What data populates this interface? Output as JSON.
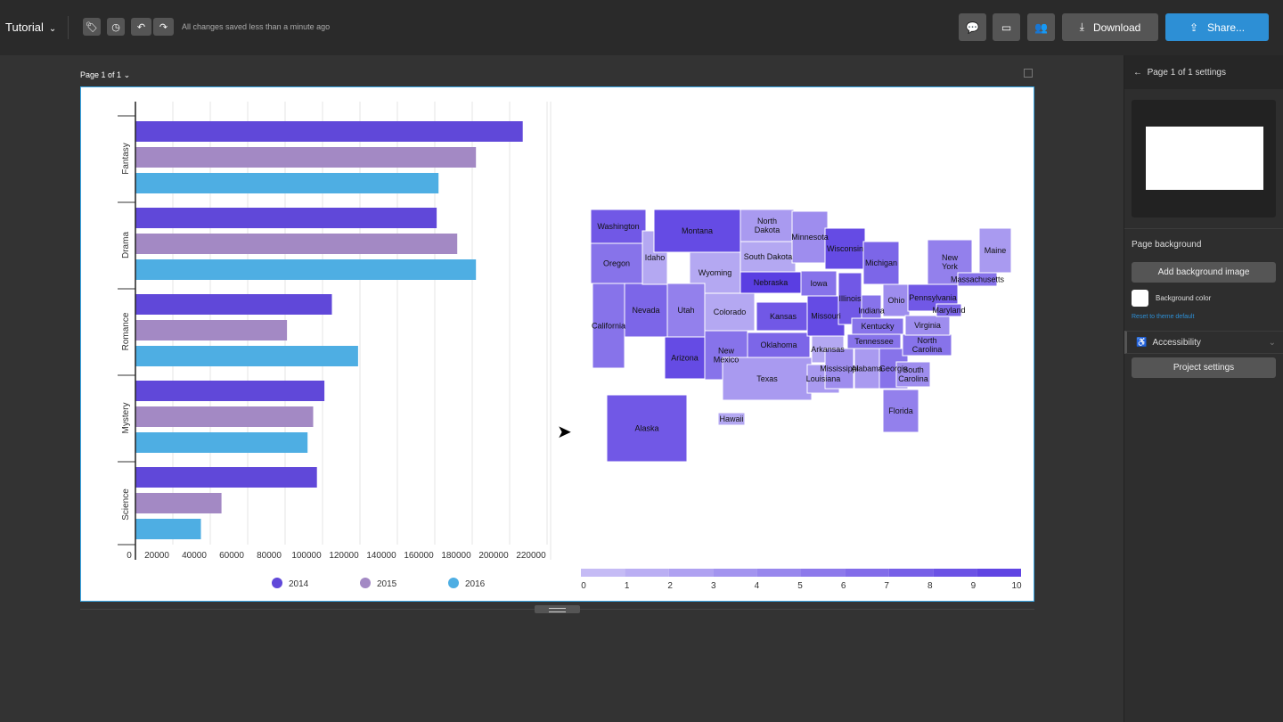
{
  "header": {
    "title": "Tutorial",
    "saved_status": "All changes saved less than a minute ago",
    "download": "Download",
    "share": "Share...",
    "icons": [
      "tag-icon",
      "history-icon",
      "undo-icon",
      "redo-icon",
      "comment-icon",
      "present-icon",
      "users-icon",
      "download-icon",
      "share-icon"
    ]
  },
  "canvas": {
    "page_label": "Page 1 of 1"
  },
  "panel": {
    "title": "Page 1 of 1 settings",
    "page_background": "Page background",
    "add_background_image": "Add background image",
    "background_color": "Background color",
    "reset": "Reset to theme default",
    "accessibility": "Accessibility",
    "project_settings": "Project settings"
  },
  "chart_data": [
    {
      "type": "bar",
      "orientation": "horizontal",
      "categories": [
        "Fantasy",
        "Drama",
        "Romance",
        "Mystery",
        "Science"
      ],
      "series": [
        {
          "name": "2014",
          "color": "#6048d9",
          "values": [
            207000,
            161000,
            105000,
            101000,
            97000
          ]
        },
        {
          "name": "2015",
          "color": "#a389c4",
          "values": [
            182000,
            172000,
            81000,
            95000,
            46000
          ]
        },
        {
          "name": "2016",
          "color": "#4eaee3",
          "values": [
            162000,
            182000,
            119000,
            92000,
            35000
          ]
        }
      ],
      "xticks": [
        "0",
        "20000",
        "40000",
        "60000",
        "80000",
        "100000",
        "120000",
        "140000",
        "160000",
        "180000",
        "200000",
        "220000"
      ],
      "xlim": [
        0,
        220000
      ],
      "legend": "bottom"
    },
    {
      "type": "choropleth",
      "scale": [
        0,
        10
      ],
      "scale_ticks": [
        "0",
        "1",
        "2",
        "3",
        "4",
        "5",
        "6",
        "7",
        "8",
        "9",
        "10"
      ],
      "color_low": "#cbc2f6",
      "color_high": "#5a3ee2",
      "states": [
        {
          "name": "Washington",
          "value": 8
        },
        {
          "name": "Oregon",
          "value": 6
        },
        {
          "name": "California",
          "value": 6
        },
        {
          "name": "Nevada",
          "value": 7
        },
        {
          "name": "Idaho",
          "value": 2
        },
        {
          "name": "Montana",
          "value": 9
        },
        {
          "name": "Wyoming",
          "value": 2
        },
        {
          "name": "Utah",
          "value": 5
        },
        {
          "name": "Colorado",
          "value": 2
        },
        {
          "name": "Arizona",
          "value": 9
        },
        {
          "name": "New Mexico",
          "value": 6
        },
        {
          "name": "North Dakota",
          "value": 3
        },
        {
          "name": "South Dakota",
          "value": 2
        },
        {
          "name": "Nebraska",
          "value": 10
        },
        {
          "name": "Kansas",
          "value": 8
        },
        {
          "name": "Oklahoma",
          "value": 7
        },
        {
          "name": "Texas",
          "value": 3
        },
        {
          "name": "Minnesota",
          "value": 4
        },
        {
          "name": "Iowa",
          "value": 6
        },
        {
          "name": "Missouri",
          "value": 9
        },
        {
          "name": "Arkansas",
          "value": 2
        },
        {
          "name": "Louisiana",
          "value": 3
        },
        {
          "name": "Wisconsin",
          "value": 9
        },
        {
          "name": "Illinois",
          "value": 8
        },
        {
          "name": "Michigan",
          "value": 7
        },
        {
          "name": "Indiana",
          "value": 6
        },
        {
          "name": "Ohio",
          "value": 4
        },
        {
          "name": "Kentucky",
          "value": 6
        },
        {
          "name": "Tennessee",
          "value": 6
        },
        {
          "name": "Mississippi",
          "value": 4
        },
        {
          "name": "Alabama",
          "value": 3
        },
        {
          "name": "Georgia",
          "value": 6
        },
        {
          "name": "Florida",
          "value": 5
        },
        {
          "name": "South Carolina",
          "value": 4
        },
        {
          "name": "North Carolina",
          "value": 6
        },
        {
          "name": "Virginia",
          "value": 4
        },
        {
          "name": "Pennsylvania",
          "value": 8
        },
        {
          "name": "New York",
          "value": 5
        },
        {
          "name": "Maryland",
          "value": 7
        },
        {
          "name": "Massachusetts",
          "value": 6
        },
        {
          "name": "Maine",
          "value": 3
        },
        {
          "name": "Alaska",
          "value": 8
        },
        {
          "name": "Hawaii",
          "value": 2
        }
      ]
    }
  ]
}
